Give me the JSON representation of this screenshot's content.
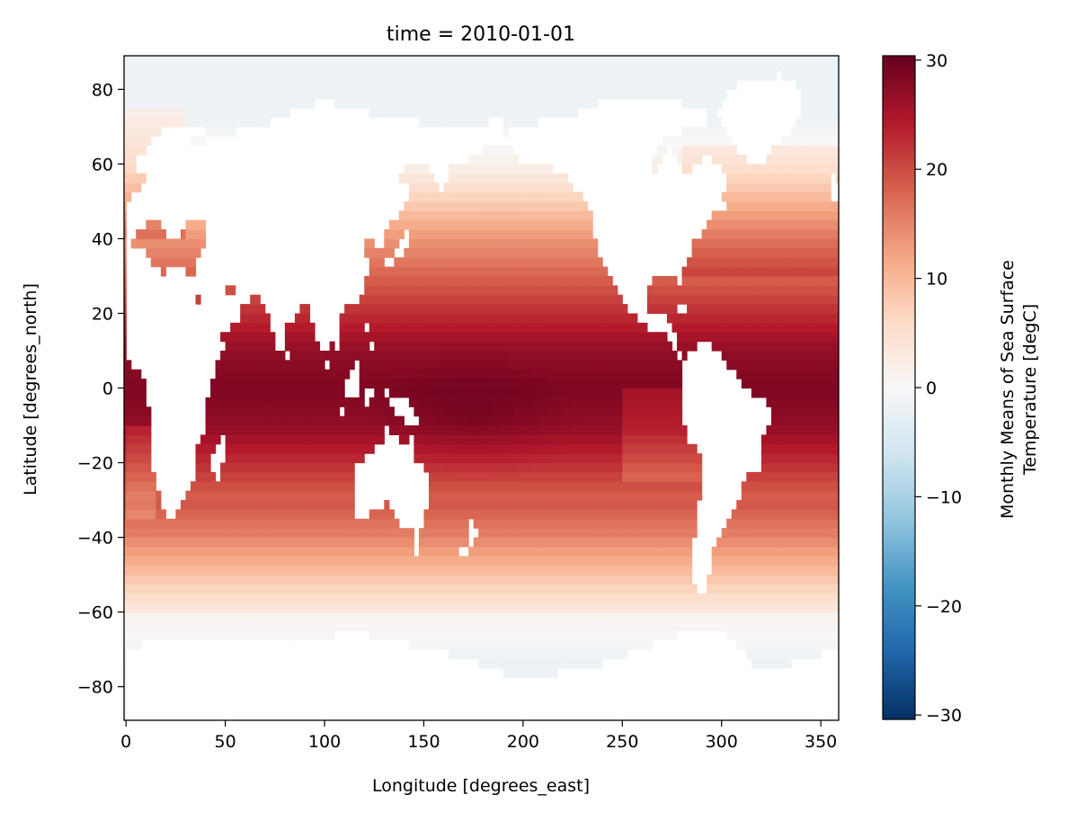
{
  "chart_data": {
    "type": "heatmap",
    "title": "time = 2010-01-01",
    "xlabel": "Longitude [degrees_east]",
    "ylabel": "Latitude [degrees_north]",
    "xlim": [
      -1,
      359
    ],
    "ylim": [
      -89,
      89
    ],
    "xticks": [
      0,
      50,
      100,
      150,
      200,
      250,
      300,
      350
    ],
    "yticks": [
      -80,
      -60,
      -40,
      -20,
      0,
      20,
      40,
      60,
      80
    ],
    "colorbar": {
      "label_line1": "Monthly Means of Sea Surface",
      "label_line2": "Temperature [degC]",
      "range": [
        -30.4,
        30.4
      ],
      "ticks": [
        -30,
        -20,
        -10,
        0,
        10,
        20,
        30
      ],
      "colormap": "RdBu_r",
      "stops": [
        "#053061",
        "#2166ac",
        "#4393c3",
        "#92c5de",
        "#d1e5f0",
        "#f7f7f7",
        "#fddbc7",
        "#f4a582",
        "#d6604d",
        "#b2182b",
        "#67001f"
      ]
    },
    "grid": false,
    "missing_color": "#ffffff",
    "sst_model": {
      "description_values_degC": {
        "equatorial_max": 29.5,
        "lat_20": 25,
        "lat_40": 14,
        "lat_60": 2,
        "polar_min": -1.8
      }
    }
  }
}
